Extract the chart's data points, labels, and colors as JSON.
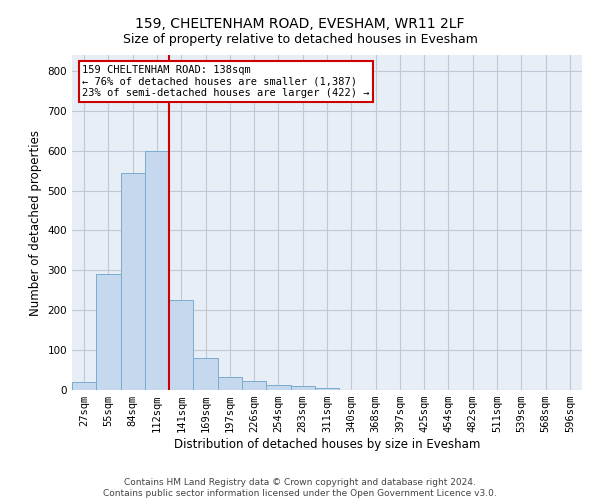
{
  "title": "159, CHELTENHAM ROAD, EVESHAM, WR11 2LF",
  "subtitle": "Size of property relative to detached houses in Evesham",
  "xlabel": "Distribution of detached houses by size in Evesham",
  "ylabel": "Number of detached properties",
  "footer_line1": "Contains HM Land Registry data © Crown copyright and database right 2024.",
  "footer_line2": "Contains public sector information licensed under the Open Government Licence v3.0.",
  "bar_labels": [
    "27sqm",
    "55sqm",
    "84sqm",
    "112sqm",
    "141sqm",
    "169sqm",
    "197sqm",
    "226sqm",
    "254sqm",
    "283sqm",
    "311sqm",
    "340sqm",
    "368sqm",
    "397sqm",
    "425sqm",
    "454sqm",
    "482sqm",
    "511sqm",
    "539sqm",
    "568sqm",
    "596sqm"
  ],
  "bar_values": [
    20,
    290,
    545,
    600,
    225,
    80,
    33,
    22,
    12,
    9,
    6,
    0,
    0,
    0,
    0,
    0,
    0,
    0,
    0,
    0,
    0
  ],
  "bar_color": "#c5d8ed",
  "bar_edge_color": "#7aabcf",
  "grid_color": "#c0c8d8",
  "bg_color": "#e8eef5",
  "vline_x_index": 4,
  "vline_color": "#cc0000",
  "annotation_text": "159 CHELTENHAM ROAD: 138sqm\n← 76% of detached houses are smaller (1,387)\n23% of semi-detached houses are larger (422) →",
  "annotation_box_color": "#ffffff",
  "annotation_box_edge": "#cc0000",
  "ylim": [
    0,
    840
  ],
  "yticks": [
    0,
    100,
    200,
    300,
    400,
    500,
    600,
    700,
    800
  ],
  "title_fontsize": 10,
  "subtitle_fontsize": 9,
  "xlabel_fontsize": 8.5,
  "ylabel_fontsize": 8.5,
  "tick_fontsize": 7.5,
  "annot_fontsize": 7.5,
  "footer_fontsize": 6.5
}
